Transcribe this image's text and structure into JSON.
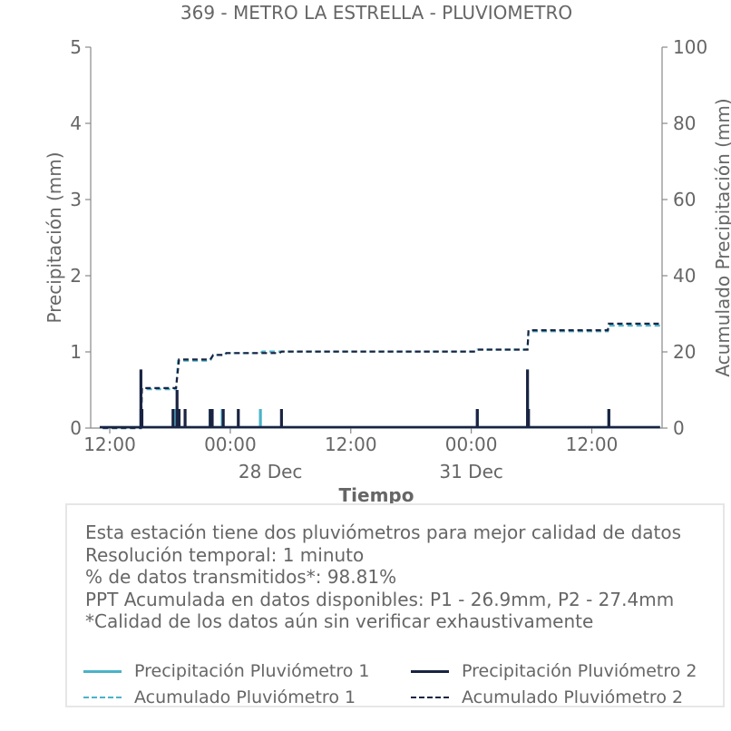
{
  "chart_data": {
    "type": "bar",
    "title": "369 - METRO LA ESTRELLA - PLUVIOMETRO",
    "xlabel": "Tiempo",
    "ylabel_left": "Precipitación (mm)",
    "ylabel_right": "Acumulado Precipitación (mm)",
    "ylim_left": [
      0,
      5
    ],
    "ylim_right": [
      0,
      100
    ],
    "yticks_left": [
      "0",
      "1",
      "2",
      "3",
      "4",
      "5"
    ],
    "yticks_right": [
      "0",
      "20",
      "40",
      "60",
      "80",
      "100"
    ],
    "xlim": [
      "2024-12-27T10:00",
      "2025-12-29T18:00"
    ],
    "xticks": [
      {
        "label": "12:00",
        "t": 0.0
      },
      {
        "label": "00:00",
        "t": 12.0
      },
      {
        "label": "12:00",
        "t": 24.0
      },
      {
        "label": "00:00",
        "t": 36.0
      },
      {
        "label": "12:00",
        "t": 48.0
      }
    ],
    "xsublabels": [
      {
        "label": "28 Dec",
        "t": 16.0
      },
      {
        "label": "31 Dec",
        "t": 36.0
      }
    ],
    "grid": false,
    "series": [
      {
        "name": "Precipitación Pluviómetro 1",
        "color": "#4ab3c8",
        "style": "bar",
        "points": [
          [
            3.1,
            0.25
          ],
          [
            6.6,
            0.25
          ],
          [
            10.0,
            0.25
          ],
          [
            11.2,
            0.25
          ],
          [
            15.0,
            0.25
          ],
          [
            36.6,
            0.25
          ],
          [
            41.6,
            0.5
          ],
          [
            49.7,
            0.25
          ]
        ]
      },
      {
        "name": "Precipitación Pluviómetro 2",
        "color": "#1a2342",
        "style": "bar",
        "points": [
          [
            3.1,
            0.77
          ],
          [
            3.2,
            0.25
          ],
          [
            6.3,
            0.25
          ],
          [
            6.7,
            0.5
          ],
          [
            6.9,
            0.25
          ],
          [
            7.5,
            0.25
          ],
          [
            10.0,
            0.25
          ],
          [
            10.2,
            0.25
          ],
          [
            11.3,
            0.25
          ],
          [
            12.8,
            0.25
          ],
          [
            17.1,
            0.25
          ],
          [
            36.6,
            0.25
          ],
          [
            41.6,
            0.77
          ],
          [
            41.7,
            0.25
          ],
          [
            49.7,
            0.25
          ]
        ]
      },
      {
        "name": "Acumulado Pluviómetro 1",
        "color": "#4ab3c8",
        "style": "dashed",
        "points": [
          [
            -0.7,
            0
          ],
          [
            3.1,
            0
          ],
          [
            3.2,
            10.2
          ],
          [
            6.6,
            10.2
          ],
          [
            6.8,
            17.7
          ],
          [
            10.0,
            17.7
          ],
          [
            10.3,
            19.2
          ],
          [
            11.4,
            19.2
          ],
          [
            11.6,
            19.7
          ],
          [
            15.0,
            19.7
          ],
          [
            15.2,
            20.1
          ],
          [
            36.4,
            20.1
          ],
          [
            36.6,
            20.6
          ],
          [
            41.6,
            20.6
          ],
          [
            41.7,
            25.4
          ],
          [
            49.6,
            25.4
          ],
          [
            49.7,
            26.9
          ],
          [
            54.8,
            26.9
          ]
        ]
      },
      {
        "name": "Acumulado Pluviómetro 2",
        "color": "#1a2342",
        "style": "dashed",
        "points": [
          [
            -0.7,
            0
          ],
          [
            3.1,
            0
          ],
          [
            3.2,
            10.5
          ],
          [
            6.6,
            10.5
          ],
          [
            6.9,
            18.0
          ],
          [
            10.0,
            18.0
          ],
          [
            10.3,
            19.2
          ],
          [
            11.4,
            19.2
          ],
          [
            11.6,
            19.7
          ],
          [
            16.9,
            19.7
          ],
          [
            17.1,
            20.1
          ],
          [
            36.4,
            20.1
          ],
          [
            36.6,
            20.6
          ],
          [
            41.6,
            20.6
          ],
          [
            41.7,
            25.7
          ],
          [
            49.6,
            25.7
          ],
          [
            49.7,
            27.4
          ],
          [
            54.8,
            27.4
          ]
        ]
      }
    ]
  },
  "info": {
    "lines": [
      "Esta estación tiene dos pluviómetros para mejor calidad de datos",
      "Resolución temporal: 1 minuto",
      "% de datos transmitidos*: 98.81%",
      "PPT Acumulada en datos disponibles: P1 - 26.9mm, P2 - 27.4mm",
      "*Calidad de los datos aún sin verificar exhaustivamente"
    ]
  },
  "legend": {
    "items": [
      {
        "label": "Precipitación Pluviómetro 1",
        "color": "#4ab3c8",
        "dash": false
      },
      {
        "label": "Precipitación Pluviómetro 2",
        "color": "#1a2342",
        "dash": false
      },
      {
        "label": "Acumulado Pluviómetro 1",
        "color": "#4ab3c8",
        "dash": true
      },
      {
        "label": "Acumulado Pluviómetro 2",
        "color": "#1a2342",
        "dash": true
      }
    ]
  }
}
